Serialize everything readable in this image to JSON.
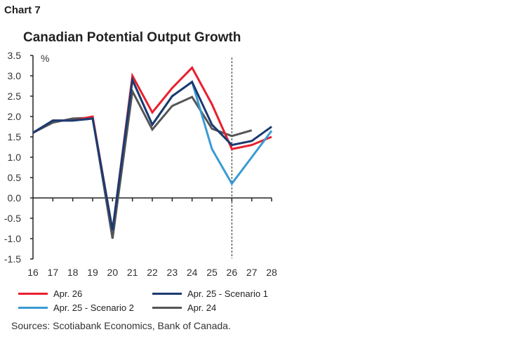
{
  "chart_label": "Chart 7",
  "chart_data": {
    "type": "line",
    "title": "Canadian Potential Output Growth",
    "ylabel": "%",
    "x": [
      "16",
      "17",
      "18",
      "19",
      "20",
      "21",
      "22",
      "23",
      "24",
      "25",
      "26",
      "27",
      "28"
    ],
    "ylim": [
      -1.5,
      3.5
    ],
    "yticks": [
      "3.5",
      "3.0",
      "2.5",
      "2.0",
      "1.5",
      "1.0",
      "0.5",
      "0.0",
      "-0.5",
      "-1.0",
      "-1.5"
    ],
    "vertical_marker_x": "26",
    "grid": false,
    "legend_position": "bottom",
    "series": [
      {
        "name": "Apr. 26",
        "color": "#e8202e",
        "values": [
          1.6,
          1.9,
          1.9,
          2.0,
          -0.8,
          3.0,
          2.1,
          2.7,
          3.2,
          2.3,
          1.2,
          1.3,
          1.5
        ]
      },
      {
        "name": "Apr. 25 - Scenario 1",
        "color": "#1c3a6e",
        "values": [
          1.6,
          1.9,
          1.9,
          1.95,
          -0.8,
          2.9,
          1.8,
          2.5,
          2.85,
          1.8,
          1.3,
          1.4,
          1.75
        ]
      },
      {
        "name": "Apr. 25 - Scenario 2",
        "color": "#3a9ad4",
        "values": [
          1.6,
          1.9,
          1.9,
          1.95,
          -0.8,
          2.9,
          1.8,
          2.5,
          2.85,
          1.2,
          0.35,
          1.0,
          1.65
        ]
      },
      {
        "name": "Apr. 24",
        "color": "#555555",
        "values": [
          1.6,
          1.85,
          1.95,
          1.97,
          -1.0,
          2.62,
          1.68,
          2.26,
          2.48,
          1.7,
          1.52,
          1.66,
          null
        ]
      }
    ]
  },
  "source": "Sources: Scotiabank Economics, Bank of Canada."
}
